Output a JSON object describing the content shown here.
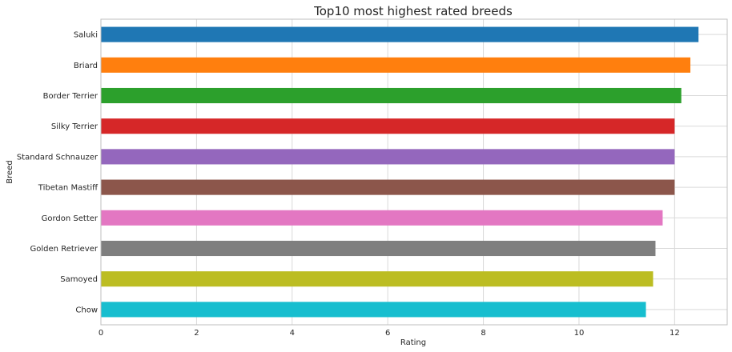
{
  "chart_data": {
    "type": "bar",
    "orientation": "horizontal",
    "title": "Top10 most highest rated breeds",
    "xlabel": "Rating",
    "ylabel": "Breed",
    "xlim": [
      0,
      13.1
    ],
    "xticks": [
      0,
      2,
      4,
      6,
      8,
      10,
      12
    ],
    "grid": true,
    "categories": [
      "Saluki",
      "Briard",
      "Border Terrier",
      "Silky Terrier",
      "Standard Schnauzer",
      "Tibetan Mastiff",
      "Gordon Setter",
      "Golden Retriever",
      "Samoyed",
      "Chow"
    ],
    "values": [
      12.5,
      12.33,
      12.14,
      12.0,
      12.0,
      12.0,
      11.75,
      11.6,
      11.55,
      11.4
    ],
    "colors": [
      "#1f77b4",
      "#ff7f0e",
      "#2ca02c",
      "#d62728",
      "#9467bd",
      "#8c564b",
      "#e377c2",
      "#7f7f7f",
      "#bcbd22",
      "#17becf"
    ]
  }
}
